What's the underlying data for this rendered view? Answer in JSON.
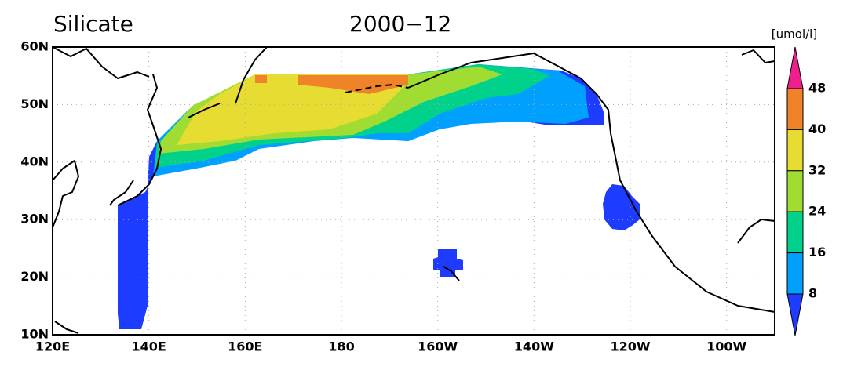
{
  "header": {
    "title": "Silicate",
    "date": "2000−12"
  },
  "axes": {
    "lat_labels": [
      "60N",
      "50N",
      "40N",
      "30N",
      "20N",
      "10N"
    ],
    "lon_labels": [
      "120E",
      "140E",
      "160E",
      "180",
      "160W",
      "140W",
      "120W",
      "100W"
    ]
  },
  "colorbar": {
    "unit": "[umol/l]",
    "levels": [
      48,
      40,
      32,
      24,
      16,
      8
    ],
    "colors": [
      "#ee1e8c",
      "#f08228",
      "#e6dc32",
      "#a0dc32",
      "#00d28c",
      "#00a0ff",
      "#1e3cff"
    ]
  }
}
